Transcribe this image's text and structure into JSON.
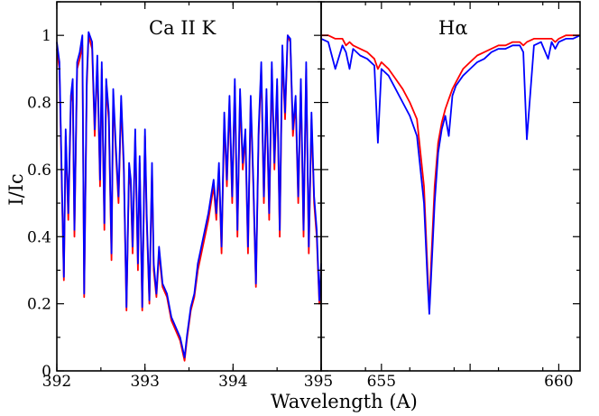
{
  "chart_data": [
    {
      "type": "line",
      "title": "Ca II K",
      "xlabel": "Wavelength (A)",
      "ylabel": "I/Ic",
      "xlim": [
        392.0,
        395.0
      ],
      "ylim": [
        0,
        1.1
      ],
      "x_ticks": [
        "392",
        "393",
        "394",
        "395"
      ],
      "y_ticks": [
        "0",
        "0.2",
        "0.4",
        "0.6",
        "0.8",
        "1"
      ],
      "colors": [
        "#ff0000",
        "#0000ff"
      ],
      "series": [
        {
          "x": [
            392.0,
            392.03,
            392.06,
            392.08,
            392.1,
            392.13,
            392.16,
            392.18,
            392.2,
            392.23,
            392.26,
            392.29,
            392.31,
            392.34,
            392.36,
            392.4,
            392.43,
            392.46,
            392.49,
            392.51,
            392.54,
            392.56,
            392.59,
            392.62,
            392.64,
            392.67,
            392.7,
            392.73,
            392.76,
            392.79,
            392.82,
            392.84,
            392.86,
            392.89,
            392.92,
            392.94,
            392.97,
            393.0,
            393.02,
            393.05,
            393.08,
            393.1,
            393.13,
            393.16,
            393.2,
            393.25,
            393.3,
            393.35,
            393.4,
            393.45,
            393.48,
            393.52,
            393.56,
            393.6,
            393.64,
            393.68,
            393.72,
            393.75,
            393.78,
            393.81,
            393.84,
            393.87,
            393.9,
            393.93,
            393.96,
            393.99,
            394.02,
            394.05,
            394.08,
            394.11,
            394.14,
            394.17,
            394.2,
            394.23,
            394.26,
            394.29,
            394.32,
            394.35,
            394.38,
            394.41,
            394.44,
            394.47,
            394.5,
            394.53,
            394.56,
            394.59,
            394.62,
            394.65,
            394.68,
            394.71,
            394.74,
            394.77,
            394.8,
            394.83,
            394.86,
            394.89,
            394.92,
            394.95,
            394.98,
            395.0
          ],
          "y": [
            0.96,
            0.9,
            0.5,
            0.27,
            0.7,
            0.45,
            0.8,
            0.85,
            0.4,
            0.9,
            0.93,
            0.97,
            0.22,
            0.85,
            1.0,
            0.96,
            0.7,
            0.92,
            0.55,
            0.9,
            0.42,
            0.85,
            0.75,
            0.33,
            0.82,
            0.65,
            0.5,
            0.8,
            0.6,
            0.18,
            0.6,
            0.55,
            0.35,
            0.7,
            0.3,
            0.62,
            0.18,
            0.7,
            0.45,
            0.2,
            0.6,
            0.3,
            0.22,
            0.35,
            0.25,
            0.22,
            0.15,
            0.12,
            0.09,
            0.03,
            0.1,
            0.18,
            0.22,
            0.3,
            0.35,
            0.4,
            0.45,
            0.5,
            0.55,
            0.45,
            0.6,
            0.35,
            0.75,
            0.55,
            0.8,
            0.5,
            0.85,
            0.4,
            0.82,
            0.6,
            0.7,
            0.35,
            0.8,
            0.55,
            0.25,
            0.7,
            0.9,
            0.5,
            0.82,
            0.45,
            0.9,
            0.6,
            0.85,
            0.4,
            0.95,
            0.75,
            1.0,
            0.98,
            0.7,
            0.8,
            0.5,
            0.85,
            0.4,
            0.9,
            0.35,
            0.75,
            0.5,
            0.4,
            0.2,
            0.3
          ]
        },
        {
          "x": [
            392.0,
            392.03,
            392.06,
            392.08,
            392.1,
            392.13,
            392.16,
            392.18,
            392.2,
            392.23,
            392.26,
            392.29,
            392.31,
            392.34,
            392.36,
            392.4,
            392.43,
            392.46,
            392.49,
            392.51,
            392.54,
            392.56,
            392.59,
            392.62,
            392.64,
            392.67,
            392.7,
            392.73,
            392.76,
            392.79,
            392.82,
            392.84,
            392.86,
            392.89,
            392.92,
            392.94,
            392.97,
            393.0,
            393.02,
            393.05,
            393.08,
            393.1,
            393.13,
            393.16,
            393.2,
            393.25,
            393.3,
            393.35,
            393.4,
            393.45,
            393.48,
            393.52,
            393.56,
            393.6,
            393.64,
            393.68,
            393.72,
            393.75,
            393.78,
            393.81,
            393.84,
            393.87,
            393.9,
            393.93,
            393.96,
            393.99,
            394.02,
            394.05,
            394.08,
            394.11,
            394.14,
            394.17,
            394.2,
            394.23,
            394.26,
            394.29,
            394.32,
            394.35,
            394.38,
            394.41,
            394.44,
            394.47,
            394.5,
            394.53,
            394.56,
            394.59,
            394.62,
            394.65,
            394.68,
            394.71,
            394.74,
            394.77,
            394.8,
            394.83,
            394.86,
            394.89,
            394.92,
            394.95,
            394.98,
            395.0
          ],
          "y": [
            0.98,
            0.92,
            0.52,
            0.28,
            0.72,
            0.47,
            0.82,
            0.87,
            0.42,
            0.92,
            0.95,
            1.0,
            0.23,
            0.87,
            1.01,
            0.98,
            0.72,
            0.94,
            0.57,
            0.92,
            0.44,
            0.87,
            0.77,
            0.35,
            0.84,
            0.67,
            0.52,
            0.82,
            0.62,
            0.19,
            0.62,
            0.57,
            0.37,
            0.72,
            0.32,
            0.64,
            0.19,
            0.72,
            0.47,
            0.21,
            0.62,
            0.32,
            0.23,
            0.37,
            0.26,
            0.23,
            0.16,
            0.13,
            0.1,
            0.04,
            0.11,
            0.19,
            0.23,
            0.32,
            0.37,
            0.42,
            0.47,
            0.52,
            0.57,
            0.47,
            0.62,
            0.37,
            0.77,
            0.57,
            0.82,
            0.52,
            0.87,
            0.42,
            0.84,
            0.62,
            0.72,
            0.37,
            0.82,
            0.57,
            0.26,
            0.72,
            0.92,
            0.52,
            0.84,
            0.47,
            0.92,
            0.62,
            0.87,
            0.42,
            0.97,
            0.77,
            1.0,
            0.99,
            0.72,
            0.82,
            0.52,
            0.87,
            0.42,
            0.92,
            0.37,
            0.77,
            0.52,
            0.42,
            0.21,
            0.32
          ]
        }
      ]
    },
    {
      "type": "line",
      "title": "Hα",
      "xlabel": "Wavelength (A)",
      "ylabel": "I/Ic",
      "xlim": [
        653.3,
        660.6
      ],
      "ylim": [
        0,
        1.1
      ],
      "x_ticks": [
        "655",
        "",
        "660"
      ],
      "y_ticks": [
        "0",
        "0.2",
        "0.4",
        "0.6",
        "0.8",
        "1"
      ],
      "colors": [
        "#ff0000",
        "#0000ff"
      ],
      "series": [
        {
          "x": [
            653.3,
            653.5,
            653.7,
            653.9,
            654.0,
            654.1,
            654.2,
            654.4,
            654.6,
            654.8,
            654.9,
            655.0,
            655.2,
            655.4,
            655.6,
            655.8,
            656.0,
            656.1,
            656.2,
            656.3,
            656.35,
            656.4,
            656.5,
            656.6,
            656.7,
            656.8,
            656.9,
            657.0,
            657.1,
            657.3,
            657.5,
            657.7,
            657.9,
            658.1,
            658.3,
            658.5,
            658.7,
            658.9,
            659.0,
            659.1,
            659.3,
            659.5,
            659.7,
            659.8,
            659.9,
            660.0,
            660.2,
            660.4,
            660.6
          ],
          "y": [
            1.0,
            1.0,
            0.99,
            0.99,
            0.97,
            0.98,
            0.97,
            0.96,
            0.95,
            0.93,
            0.9,
            0.92,
            0.9,
            0.87,
            0.84,
            0.8,
            0.75,
            0.65,
            0.55,
            0.3,
            0.18,
            0.32,
            0.55,
            0.68,
            0.74,
            0.78,
            0.81,
            0.84,
            0.86,
            0.9,
            0.92,
            0.94,
            0.95,
            0.96,
            0.97,
            0.97,
            0.98,
            0.98,
            0.97,
            0.98,
            0.99,
            0.99,
            0.99,
            0.99,
            0.98,
            0.99,
            1.0,
            1.0,
            1.0
          ]
        },
        {
          "x": [
            653.3,
            653.5,
            653.7,
            653.9,
            654.0,
            654.1,
            654.2,
            654.4,
            654.6,
            654.8,
            654.9,
            655.0,
            655.2,
            655.4,
            655.6,
            655.8,
            656.0,
            656.1,
            656.2,
            656.3,
            656.35,
            656.4,
            656.5,
            656.6,
            656.7,
            656.8,
            656.9,
            657.0,
            657.1,
            657.3,
            657.5,
            657.7,
            657.9,
            658.1,
            658.3,
            658.5,
            658.7,
            658.9,
            659.0,
            659.1,
            659.3,
            659.5,
            659.7,
            659.8,
            659.9,
            660.0,
            660.2,
            660.4,
            660.6
          ],
          "y": [
            0.99,
            0.98,
            0.9,
            0.97,
            0.95,
            0.9,
            0.96,
            0.94,
            0.93,
            0.91,
            0.68,
            0.9,
            0.88,
            0.84,
            0.8,
            0.76,
            0.7,
            0.6,
            0.5,
            0.27,
            0.17,
            0.28,
            0.5,
            0.65,
            0.72,
            0.76,
            0.7,
            0.82,
            0.85,
            0.88,
            0.9,
            0.92,
            0.93,
            0.95,
            0.96,
            0.96,
            0.97,
            0.97,
            0.95,
            0.69,
            0.97,
            0.98,
            0.93,
            0.98,
            0.96,
            0.98,
            0.99,
            0.99,
            1.0
          ]
        }
      ]
    }
  ]
}
